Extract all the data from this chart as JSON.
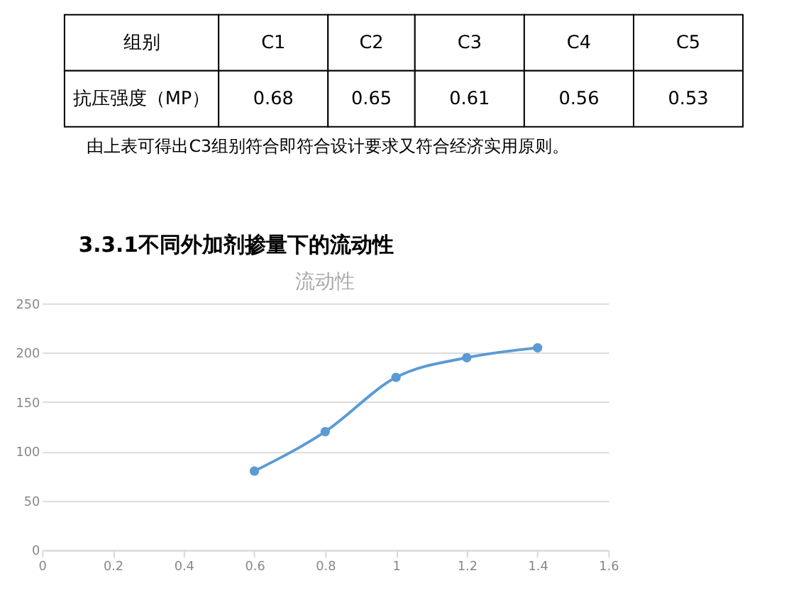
{
  "chart_data": [
    {
      "type": "other",
      "annotations": [
        "组别",
        "C1",
        "C2",
        "C3",
        "C4",
        "C5",
        "抗压强度（MP）",
        "0.68",
        "0.65",
        "0.61",
        "0.56",
        "0.53",
        "由上表可得出C3组别符合即符合设计要求又符合经济实用原则。",
        "3.3.1不同外加剂掺量下的流动性"
      ]
    },
    {
      "type": "line",
      "title": "流动性",
      "x": [
        0.6,
        0.8,
        1.0,
        1.2,
        1.4
      ],
      "series": [
        {
          "color": "#5b9bd5",
          "values": [
            80,
            120,
            175,
            195,
            205
          ]
        }
      ],
      "xlim": [
        0,
        1.6
      ],
      "xticks": [
        0,
        0.2,
        0.4,
        0.6,
        0.8,
        1,
        1.2,
        1.4,
        1.6
      ],
      "ylim": [
        0,
        250
      ],
      "yticks": [
        0,
        50,
        100,
        150,
        200,
        250
      ],
      "grid": "y",
      "marker": "circle",
      "line_style": "solid",
      "legend": false
    }
  ]
}
